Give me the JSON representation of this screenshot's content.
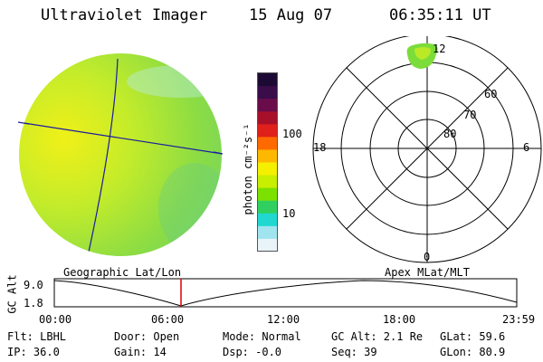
{
  "header": {
    "instrument": "Ultraviolet Imager",
    "date": "15 Aug 07",
    "time": "06:35:11 UT"
  },
  "colorbar": {
    "unit_label": "photon cm⁻²s⁻¹",
    "tick_100": "100",
    "tick_10": "10",
    "colors": [
      "#1c0a34",
      "#3a0c4a",
      "#6a0c4a",
      "#a8102a",
      "#e0201a",
      "#ff6a00",
      "#ffb800",
      "#f4f000",
      "#c8ee00",
      "#7ce000",
      "#30d060",
      "#20d8d0",
      "#a0e4f0",
      "#e8f4f8"
    ]
  },
  "polar_plot": {
    "label_12": "12",
    "label_18": "18",
    "label_6": "6",
    "label_0": "0",
    "lat_60": "60",
    "lat_70": "70",
    "lat_80": "80"
  },
  "timeline": {
    "left_label": "Geographic Lat/Lon",
    "right_label": "Apex MLat/MLT",
    "axis_title": "GC Alt",
    "y_top": "9.0",
    "y_bottom": "1.8",
    "times": [
      "00:00",
      "06:00",
      "12:00",
      "18:00",
      "23:59"
    ],
    "current_time_marker_color": "#e00000"
  },
  "footer": {
    "filter": "Flt: LBHL",
    "ip": "IP: 36.0",
    "door": "Door: Open",
    "gain": "Gain: 14",
    "mode": "Mode: Normal",
    "dsp": "Dsp:   -0.0",
    "gc_alt": "GC Alt: 2.1 Re",
    "seq": "Seq: 39",
    "glat": "GLat:  59.6",
    "glon": "GLon:  80.9"
  }
}
